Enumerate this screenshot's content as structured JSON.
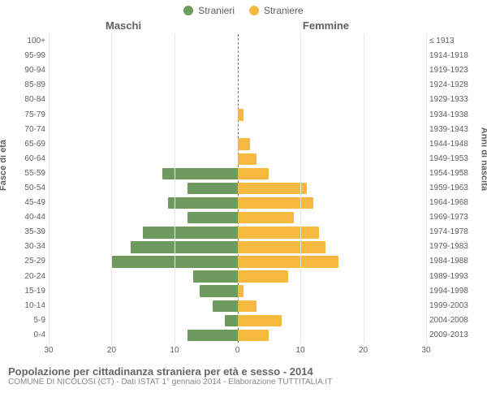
{
  "legend": {
    "male": {
      "label": "Stranieri",
      "color": "#6f9a5e"
    },
    "female": {
      "label": "Straniere",
      "color": "#f4b93e"
    }
  },
  "columns": {
    "left": "Maschi",
    "right": "Femmine"
  },
  "y_axes": {
    "left_title": "Fasce di età",
    "right_title": "Anni di nascita"
  },
  "x_axis": {
    "max": 30,
    "ticks_left": [
      30,
      20,
      10,
      0
    ],
    "ticks_right": [
      0,
      10,
      20,
      30
    ]
  },
  "chart": {
    "type": "population-pyramid",
    "background_color": "#ffffff",
    "grid_color": "#e6e6e6",
    "center_line_color": "#777777",
    "bar_height_ratio": 0.8,
    "label_fontsize": 10,
    "title_fontsize": 13
  },
  "rows": [
    {
      "age": "100+",
      "birth": "≤ 1913",
      "m": 0,
      "f": 0
    },
    {
      "age": "95-99",
      "birth": "1914-1918",
      "m": 0,
      "f": 0
    },
    {
      "age": "90-94",
      "birth": "1919-1923",
      "m": 0,
      "f": 0
    },
    {
      "age": "85-89",
      "birth": "1924-1928",
      "m": 0,
      "f": 0
    },
    {
      "age": "80-84",
      "birth": "1929-1933",
      "m": 0,
      "f": 0
    },
    {
      "age": "75-79",
      "birth": "1934-1938",
      "m": 0,
      "f": 1
    },
    {
      "age": "70-74",
      "birth": "1939-1943",
      "m": 0,
      "f": 0
    },
    {
      "age": "65-69",
      "birth": "1944-1948",
      "m": 0,
      "f": 2
    },
    {
      "age": "60-64",
      "birth": "1949-1953",
      "m": 0,
      "f": 3
    },
    {
      "age": "55-59",
      "birth": "1954-1958",
      "m": 12,
      "f": 5
    },
    {
      "age": "50-54",
      "birth": "1959-1963",
      "m": 8,
      "f": 11
    },
    {
      "age": "45-49",
      "birth": "1964-1968",
      "m": 11,
      "f": 12
    },
    {
      "age": "40-44",
      "birth": "1969-1973",
      "m": 8,
      "f": 9
    },
    {
      "age": "35-39",
      "birth": "1974-1978",
      "m": 15,
      "f": 13
    },
    {
      "age": "30-34",
      "birth": "1979-1983",
      "m": 17,
      "f": 14
    },
    {
      "age": "25-29",
      "birth": "1984-1988",
      "m": 20,
      "f": 16
    },
    {
      "age": "20-24",
      "birth": "1989-1993",
      "m": 7,
      "f": 8
    },
    {
      "age": "15-19",
      "birth": "1994-1998",
      "m": 6,
      "f": 1
    },
    {
      "age": "10-14",
      "birth": "1999-2003",
      "m": 4,
      "f": 3
    },
    {
      "age": "5-9",
      "birth": "2004-2008",
      "m": 2,
      "f": 7
    },
    {
      "age": "0-4",
      "birth": "2009-2013",
      "m": 8,
      "f": 5
    }
  ],
  "footer": {
    "title": "Popolazione per cittadinanza straniera per età e sesso - 2014",
    "subtitle": "COMUNE DI NICOLOSI (CT) - Dati ISTAT 1° gennaio 2014 - Elaborazione TUTTITALIA.IT"
  }
}
